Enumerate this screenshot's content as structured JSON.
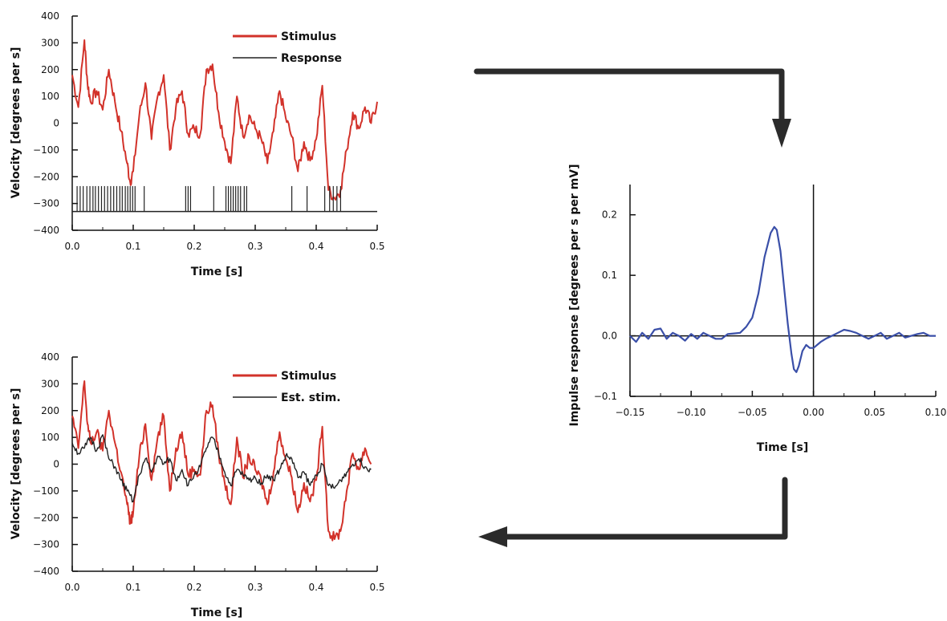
{
  "chart_data": [
    {
      "type": "line",
      "xlabel": "Time [s]",
      "ylabel": "Velocity [degrees per s]",
      "xlim": [
        0,
        0.5
      ],
      "ylim": [
        -400,
        400
      ],
      "xticks": [
        "0.0",
        "0.1",
        "0.2",
        "0.3",
        "0.4",
        "0.5"
      ],
      "yticks": [
        "400",
        "300",
        "200",
        "100",
        "0",
        "−100",
        "−200",
        "−300",
        "−400"
      ],
      "legend": [
        "Stimulus",
        "Response"
      ],
      "legend_position": "top-right",
      "series": [
        {
          "name": "Stimulus",
          "color": "#d2322a",
          "x": [
            0.0,
            0.01,
            0.02,
            0.025,
            0.03,
            0.04,
            0.05,
            0.06,
            0.07,
            0.08,
            0.09,
            0.095,
            0.1,
            0.11,
            0.12,
            0.13,
            0.14,
            0.15,
            0.16,
            0.17,
            0.18,
            0.19,
            0.2,
            0.21,
            0.22,
            0.23,
            0.24,
            0.25,
            0.26,
            0.27,
            0.28,
            0.29,
            0.3,
            0.31,
            0.32,
            0.33,
            0.34,
            0.35,
            0.36,
            0.37,
            0.38,
            0.39,
            0.4,
            0.41,
            0.42,
            0.43,
            0.44,
            0.45,
            0.46,
            0.47,
            0.48,
            0.49,
            0.5
          ],
          "y": [
            180,
            60,
            310,
            150,
            80,
            120,
            50,
            200,
            80,
            -30,
            -150,
            -220,
            -180,
            30,
            150,
            -60,
            100,
            180,
            -100,
            60,
            120,
            -40,
            -20,
            -40,
            200,
            220,
            40,
            -70,
            -150,
            100,
            -50,
            30,
            -20,
            -60,
            -150,
            -30,
            120,
            20,
            -50,
            -180,
            -70,
            -140,
            -60,
            140,
            -250,
            -280,
            -250,
            -100,
            40,
            -20,
            60,
            0,
            80
          ]
        },
        {
          "name": "Response",
          "type": "spike-train",
          "color": "#222222",
          "baseline": -330,
          "spike_top": -235,
          "spike_times": [
            0.008,
            0.013,
            0.018,
            0.024,
            0.029,
            0.034,
            0.038,
            0.043,
            0.048,
            0.053,
            0.058,
            0.063,
            0.068,
            0.073,
            0.078,
            0.082,
            0.087,
            0.091,
            0.095,
            0.099,
            0.103,
            0.118,
            0.186,
            0.19,
            0.194,
            0.232,
            0.252,
            0.256,
            0.26,
            0.264,
            0.268,
            0.272,
            0.276,
            0.282,
            0.286,
            0.36,
            0.385,
            0.414,
            0.422,
            0.428,
            0.434,
            0.44
          ]
        }
      ]
    },
    {
      "type": "line",
      "xlabel": "Time [s]",
      "ylabel": "Velocity [degrees per s]",
      "xlim": [
        0,
        0.5
      ],
      "ylim": [
        -400,
        400
      ],
      "xticks": [
        "0.0",
        "0.1",
        "0.2",
        "0.3",
        "0.4",
        "0.5"
      ],
      "yticks": [
        "400",
        "300",
        "200",
        "100",
        "0",
        "−100",
        "−200",
        "−300",
        "−400"
      ],
      "legend": [
        "Stimulus",
        "Est. stim."
      ],
      "legend_position": "top-right",
      "series": [
        {
          "name": "Stimulus",
          "color": "#d2322a",
          "x": [
            0.0,
            0.01,
            0.02,
            0.025,
            0.03,
            0.04,
            0.05,
            0.06,
            0.07,
            0.08,
            0.09,
            0.095,
            0.1,
            0.11,
            0.12,
            0.13,
            0.14,
            0.15,
            0.16,
            0.17,
            0.18,
            0.19,
            0.2,
            0.21,
            0.22,
            0.23,
            0.24,
            0.25,
            0.26,
            0.27,
            0.28,
            0.29,
            0.3,
            0.31,
            0.32,
            0.33,
            0.34,
            0.35,
            0.36,
            0.37,
            0.38,
            0.39,
            0.4,
            0.41,
            0.42,
            0.43,
            0.44,
            0.45,
            0.46,
            0.47,
            0.48,
            0.49
          ],
          "y": [
            180,
            60,
            310,
            150,
            80,
            120,
            50,
            200,
            80,
            -30,
            -150,
            -220,
            -180,
            30,
            150,
            -60,
            100,
            180,
            -100,
            60,
            120,
            -40,
            -20,
            -40,
            200,
            220,
            40,
            -70,
            -150,
            100,
            -50,
            30,
            -20,
            -60,
            -150,
            -30,
            120,
            20,
            -50,
            -180,
            -70,
            -140,
            -60,
            140,
            -250,
            -280,
            -250,
            -100,
            40,
            -20,
            60,
            0
          ]
        },
        {
          "name": "Est. stim.",
          "color": "#222222",
          "x": [
            0.0,
            0.01,
            0.02,
            0.03,
            0.04,
            0.05,
            0.06,
            0.07,
            0.08,
            0.09,
            0.1,
            0.11,
            0.12,
            0.13,
            0.14,
            0.15,
            0.16,
            0.17,
            0.18,
            0.19,
            0.2,
            0.21,
            0.22,
            0.23,
            0.24,
            0.25,
            0.26,
            0.27,
            0.28,
            0.29,
            0.3,
            0.31,
            0.32,
            0.33,
            0.34,
            0.35,
            0.36,
            0.37,
            0.38,
            0.39,
            0.4,
            0.41,
            0.42,
            0.43,
            0.44,
            0.45,
            0.46,
            0.47,
            0.48,
            0.49
          ],
          "y": [
            80,
            40,
            60,
            100,
            50,
            110,
            20,
            -10,
            -60,
            -100,
            -140,
            -40,
            20,
            -30,
            30,
            0,
            20,
            -60,
            -20,
            -80,
            -40,
            -10,
            60,
            100,
            40,
            -30,
            -80,
            -20,
            -40,
            -60,
            -50,
            -70,
            -40,
            -60,
            -20,
            30,
            20,
            -50,
            -30,
            -80,
            -40,
            0,
            -80,
            -90,
            -60,
            -30,
            0,
            20,
            -10,
            -20
          ]
        }
      ]
    },
    {
      "type": "line",
      "xlabel": "Time [s]",
      "ylabel": "Impulse response [degrees per s per mV]",
      "xlim": [
        -0.15,
        0.1
      ],
      "ylim": [
        -0.1,
        0.25
      ],
      "xticks": [
        "−0.15",
        "−0.10",
        "−0.05",
        "0.00",
        "0.05",
        "0.10"
      ],
      "yticks": [
        "0.2",
        "0.1",
        "0.0",
        "−0.1"
      ],
      "zero_lines": true,
      "series": [
        {
          "name": "Impulse response",
          "color": "#3a4fa8",
          "x": [
            -0.15,
            -0.145,
            -0.14,
            -0.135,
            -0.13,
            -0.125,
            -0.12,
            -0.115,
            -0.11,
            -0.105,
            -0.1,
            -0.095,
            -0.09,
            -0.085,
            -0.08,
            -0.075,
            -0.07,
            -0.065,
            -0.06,
            -0.055,
            -0.05,
            -0.045,
            -0.04,
            -0.035,
            -0.032,
            -0.03,
            -0.027,
            -0.024,
            -0.021,
            -0.018,
            -0.016,
            -0.014,
            -0.012,
            -0.009,
            -0.006,
            -0.003,
            0.0,
            0.003,
            0.006,
            0.01,
            0.015,
            0.02,
            0.025,
            0.03,
            0.035,
            0.04,
            0.045,
            0.05,
            0.055,
            0.06,
            0.065,
            0.07,
            0.075,
            0.08,
            0.085,
            0.09,
            0.095,
            0.1
          ],
          "y": [
            0.0,
            -0.01,
            0.005,
            -0.005,
            0.01,
            0.012,
            -0.005,
            0.005,
            0.0,
            -0.008,
            0.003,
            -0.005,
            0.005,
            0.0,
            -0.005,
            -0.005,
            0.003,
            0.004,
            0.005,
            0.015,
            0.03,
            0.07,
            0.13,
            0.17,
            0.18,
            0.175,
            0.14,
            0.08,
            0.02,
            -0.03,
            -0.055,
            -0.06,
            -0.05,
            -0.025,
            -0.015,
            -0.02,
            -0.02,
            -0.015,
            -0.01,
            -0.005,
            0.0,
            0.005,
            0.01,
            0.008,
            0.005,
            0.0,
            -0.005,
            0.0,
            0.005,
            -0.005,
            0.0,
            0.005,
            -0.003,
            0.0,
            0.003,
            0.005,
            0.0,
            0.0
          ]
        }
      ]
    }
  ]
}
